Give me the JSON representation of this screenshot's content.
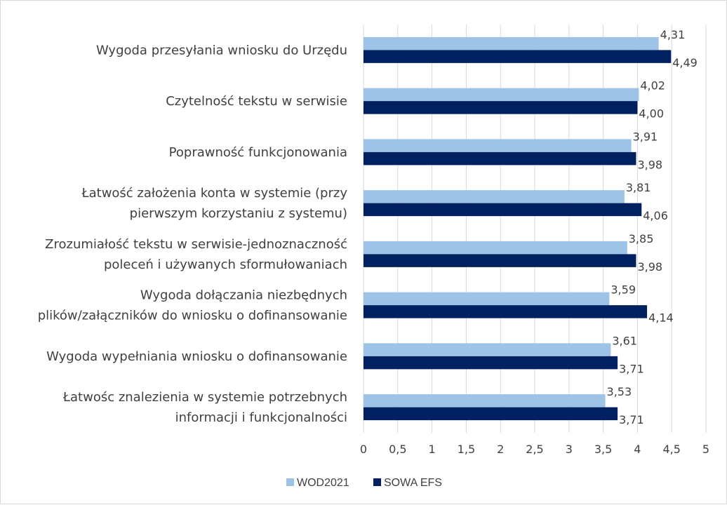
{
  "chart_data": {
    "type": "bar",
    "orientation": "horizontal",
    "categories": [
      [
        "Wygoda przesyłania wniosku do Urzędu"
      ],
      [
        "Czytelność tekstu w serwisie"
      ],
      [
        "Poprawność funkcjonowania"
      ],
      [
        "Łatwość założenia konta w systemie (przy",
        "pierwszym korzystaniu z systemu)"
      ],
      [
        "Zrozumiałość tekstu w serwisie-jednoznaczność",
        "poleceń i używanych sformułowaniach"
      ],
      [
        "Wygoda dołączania niezbędnych",
        "plików/załączników do wniosku o dofinansowanie"
      ],
      [
        "Wygoda wypełniania wniosku o dofinansowanie"
      ],
      [
        "Łatwośc znalezienia w systemie potrzebnych",
        "informacji i funkcjonalności"
      ]
    ],
    "series": [
      {
        "name": "WOD2021",
        "color": "#9DC3E6",
        "values": [
          4.31,
          4.02,
          3.91,
          3.81,
          3.85,
          3.59,
          3.61,
          3.53
        ],
        "labels": [
          "4,31",
          "4,02",
          "3,91",
          "3,81",
          "3,85",
          "3,59",
          "3,61",
          "3,53"
        ]
      },
      {
        "name": "SOWA EFS",
        "color": "#002060",
        "values": [
          4.49,
          4.0,
          3.98,
          4.06,
          3.98,
          4.14,
          3.71,
          3.71
        ],
        "labels": [
          "4,49",
          "4,00",
          "3,98",
          "4,06",
          "3,98",
          "4,14",
          "3,71",
          "3,71"
        ]
      }
    ],
    "xlim": [
      0,
      5
    ],
    "xticks": [
      "0",
      "0,5",
      "1",
      "1,5",
      "2",
      "2,5",
      "3",
      "3,5",
      "4",
      "4,5",
      "5"
    ],
    "grid": true,
    "legend_position": "bottom"
  }
}
